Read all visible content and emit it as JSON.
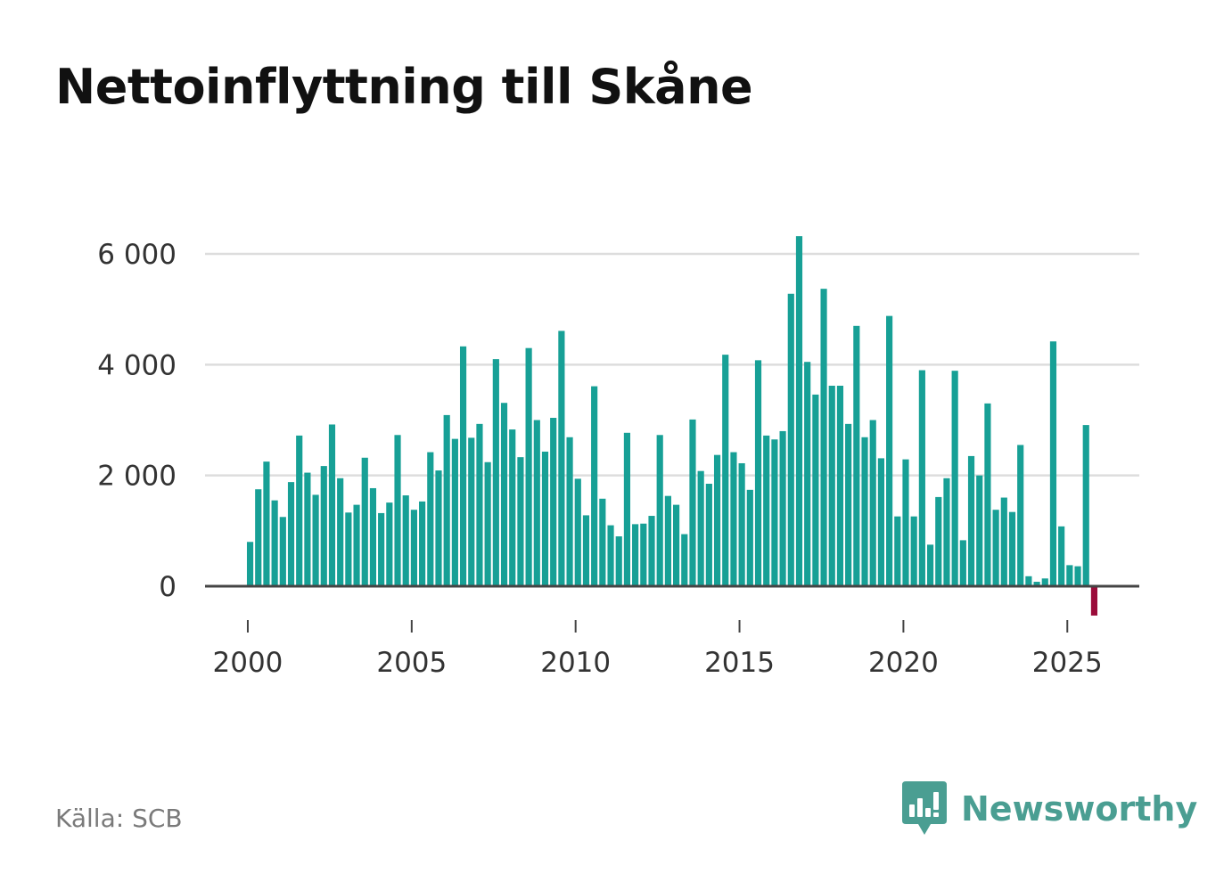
{
  "title": "Nettoinflyttning till Skåne",
  "source": "Källa: SCB",
  "brand": {
    "name": "Newsworthy",
    "icon": "newsworthy-logo-icon",
    "color": "#4a9e92"
  },
  "colors": {
    "positive": "#17a096",
    "negative": "#9b0c3a",
    "grid": "#dddddd",
    "axis": "#444444"
  },
  "chart_data": {
    "type": "bar",
    "title": "Nettoinflyttning till Skåne",
    "xlabel": "",
    "ylabel": "",
    "frequency": "quarterly",
    "start": 2000.0,
    "step": 0.25,
    "xlim": [
      1998.75,
      2027.25
    ],
    "ylim": [
      -600,
      6300
    ],
    "yticks": [
      0,
      2000,
      4000,
      6000
    ],
    "ytick_labels": [
      "0",
      "2 000",
      "4 000",
      "6 000"
    ],
    "xticks": [
      2000,
      2005,
      2010,
      2015,
      2020,
      2025
    ],
    "xtick_labels": [
      "2000",
      "2005",
      "2010",
      "2015",
      "2020",
      "2025"
    ],
    "grid": true,
    "values": [
      800,
      1750,
      2250,
      1550,
      1250,
      1880,
      2720,
      2050,
      1650,
      2170,
      2920,
      1950,
      1330,
      1470,
      2320,
      1770,
      1320,
      1510,
      2730,
      1640,
      1380,
      1530,
      2420,
      2090,
      3090,
      2660,
      4330,
      2680,
      2930,
      2240,
      4100,
      3310,
      2830,
      2330,
      4300,
      3000,
      2430,
      3040,
      4610,
      2690,
      1940,
      1280,
      3610,
      1580,
      1100,
      900,
      2770,
      1120,
      1130,
      1270,
      2730,
      1630,
      1470,
      940,
      3010,
      2080,
      1850,
      2370,
      4180,
      2420,
      2220,
      1740,
      4080,
      2720,
      2650,
      2800,
      5280,
      6320,
      4050,
      3460,
      5370,
      3620,
      3620,
      2930,
      4700,
      2690,
      3000,
      2310,
      4880,
      1260,
      2290,
      1260,
      3900,
      750,
      1610,
      1950,
      3890,
      830,
      2350,
      2000,
      3300,
      1380,
      1600,
      1340,
      2550,
      180,
      80,
      140,
      4420,
      1080,
      380,
      360,
      2910,
      -530
    ]
  }
}
